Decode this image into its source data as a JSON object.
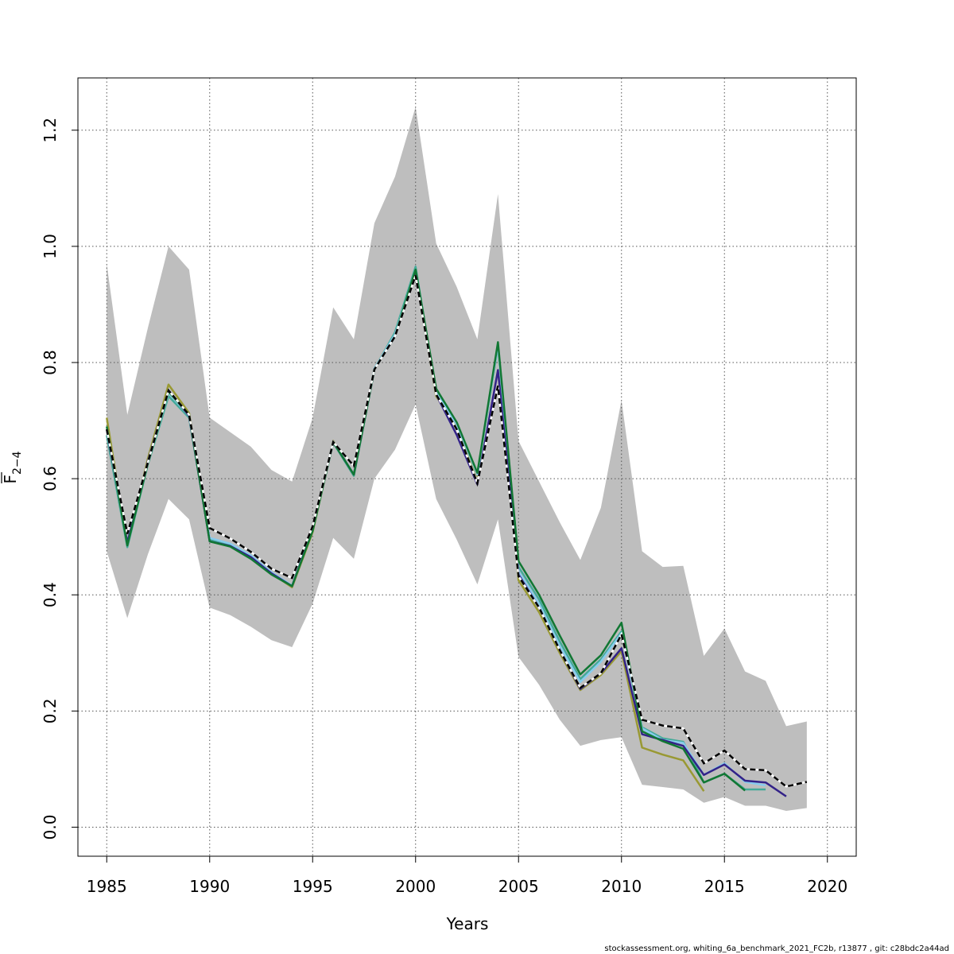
{
  "chart_data": {
    "type": "line",
    "title": "",
    "xlabel": "Years",
    "ylabel": "F̄ 2−4",
    "xlim": [
      1983.6,
      2021.4
    ],
    "ylim": [
      -0.05,
      1.29
    ],
    "x_ticks": [
      1985,
      1990,
      1995,
      2000,
      2005,
      2010,
      2015,
      2020
    ],
    "y_ticks": [
      0.0,
      0.2,
      0.4,
      0.6,
      0.8,
      1.0,
      1.2
    ],
    "y_tick_labels": [
      "0.0",
      "0.2",
      "0.4",
      "0.6",
      "0.8",
      "1.0",
      "1.2"
    ],
    "grid": true,
    "confidence_band": {
      "color": "#bebebe",
      "x": [
        1985,
        1986,
        1987,
        1988,
        1989,
        1990,
        1991,
        1992,
        1993,
        1994,
        1995,
        1996,
        1997,
        1998,
        1999,
        2000,
        2001,
        2002,
        2003,
        2004,
        2005,
        2006,
        2007,
        2008,
        2009,
        2010,
        2011,
        2012,
        2013,
        2014,
        2015,
        2016,
        2017,
        2018,
        2019
      ],
      "upper": [
        0.97,
        0.71,
        0.86,
        1.0,
        0.96,
        0.705,
        0.68,
        0.655,
        0.615,
        0.595,
        0.705,
        0.895,
        0.84,
        1.04,
        1.12,
        1.24,
        1.005,
        0.93,
        0.84,
        1.09,
        0.665,
        0.595,
        0.525,
        0.46,
        0.55,
        0.735,
        0.475,
        0.448,
        0.45,
        0.295,
        0.342,
        0.268,
        0.252,
        0.174,
        0.182
      ],
      "lower": [
        0.475,
        0.36,
        0.47,
        0.565,
        0.53,
        0.378,
        0.365,
        0.345,
        0.322,
        0.31,
        0.385,
        0.498,
        0.462,
        0.6,
        0.65,
        0.728,
        0.565,
        0.495,
        0.418,
        0.53,
        0.293,
        0.245,
        0.185,
        0.14,
        0.15,
        0.155,
        0.073,
        0.069,
        0.065,
        0.042,
        0.052,
        0.037,
        0.037,
        0.028,
        0.033
      ]
    },
    "series": [
      {
        "color": "#999933",
        "x": [
          1985,
          1986,
          1987,
          1988,
          1989,
          1990,
          1991,
          1992,
          1993,
          1994,
          1995,
          1996,
          1997,
          1998,
          1999,
          2000,
          2001,
          2002,
          2003,
          2004,
          2005,
          2006,
          2007,
          2008,
          2009,
          2010,
          2011,
          2012,
          2013,
          2014
        ],
        "values": [
          0.705,
          0.485,
          0.635,
          0.762,
          0.713,
          0.495,
          0.485,
          0.465,
          0.437,
          0.413,
          0.508,
          0.665,
          0.605,
          0.79,
          0.85,
          0.955,
          0.742,
          0.69,
          0.605,
          0.83,
          0.425,
          0.37,
          0.3,
          0.236,
          0.262,
          0.303,
          0.137,
          0.125,
          0.115,
          0.062
        ]
      },
      {
        "color": "#44AA99",
        "x": [
          1985,
          1986,
          1987,
          1988,
          1989,
          1990,
          1991,
          1992,
          1993,
          1994,
          1995,
          1996,
          1997,
          1998,
          1999,
          2000,
          2001,
          2002,
          2003,
          2004,
          2005,
          2006,
          2007,
          2008,
          2009,
          2010,
          2011,
          2012,
          2013,
          2014,
          2015,
          2016,
          2017
        ],
        "values": [
          0.675,
          0.482,
          0.625,
          0.742,
          0.705,
          0.495,
          0.485,
          0.467,
          0.438,
          0.415,
          0.513,
          0.662,
          0.605,
          0.788,
          0.852,
          0.965,
          0.748,
          0.694,
          0.608,
          0.828,
          0.448,
          0.392,
          0.32,
          0.255,
          0.289,
          0.337,
          0.172,
          0.153,
          0.147,
          0.077,
          0.092,
          0.065,
          0.065
        ]
      },
      {
        "color": "#88CCEE",
        "x": [
          1985,
          1986,
          1987,
          1988,
          1989,
          1990,
          1991,
          1992,
          1993,
          1994,
          1995,
          1996,
          1997,
          1998,
          1999,
          2000,
          2001,
          2002,
          2003,
          2004,
          2005,
          2006,
          2007,
          2008,
          2009,
          2010,
          2011,
          2012,
          2013,
          2014,
          2015,
          2016,
          2017
        ],
        "values": [
          0.685,
          0.488,
          0.628,
          0.748,
          0.708,
          0.498,
          0.488,
          0.468,
          0.439,
          0.416,
          0.513,
          0.664,
          0.607,
          0.79,
          0.848,
          0.958,
          0.747,
          0.693,
          0.607,
          0.83,
          0.44,
          0.384,
          0.312,
          0.25,
          0.285,
          0.334,
          0.17,
          0.15,
          0.145,
          0.09,
          0.11,
          0.078,
          0.072
        ]
      },
      {
        "color": "#332288",
        "x": [
          1985,
          1986,
          1987,
          1988,
          1989,
          1990,
          1991,
          1992,
          1993,
          1994,
          1995,
          1996,
          1997,
          1998,
          1999,
          2000,
          2001,
          2002,
          2003,
          2004,
          2005,
          2006,
          2007,
          2008,
          2009,
          2010,
          2011,
          2012,
          2013,
          2014,
          2015,
          2016,
          2017,
          2018
        ],
        "values": [
          0.685,
          0.49,
          0.63,
          0.752,
          0.708,
          0.492,
          0.484,
          0.465,
          0.437,
          0.415,
          0.512,
          0.663,
          0.607,
          0.788,
          0.845,
          0.955,
          0.745,
          0.675,
          0.59,
          0.787,
          0.435,
          0.378,
          0.305,
          0.238,
          0.265,
          0.308,
          0.16,
          0.15,
          0.14,
          0.09,
          0.108,
          0.08,
          0.077,
          0.053
        ]
      },
      {
        "color": "#117733",
        "x": [
          1985,
          1986,
          1987,
          1988,
          1989,
          1990,
          1991,
          1992,
          1993,
          1994,
          1995,
          1996,
          1997,
          1998,
          1999,
          2000,
          2001,
          2002,
          2003,
          2004,
          2005,
          2006,
          2007,
          2008,
          2009,
          2010,
          2011,
          2012,
          2013,
          2014,
          2015,
          2016
        ],
        "values": [
          0.69,
          0.485,
          0.627,
          0.75,
          0.71,
          0.492,
          0.483,
          0.462,
          0.435,
          0.415,
          0.51,
          0.663,
          0.607,
          0.788,
          0.845,
          0.96,
          0.755,
          0.697,
          0.61,
          0.835,
          0.458,
          0.4,
          0.33,
          0.263,
          0.296,
          0.352,
          0.165,
          0.148,
          0.135,
          0.077,
          0.092,
          0.063
        ]
      },
      {
        "color": "#000000",
        "dashed": true,
        "x": [
          1985,
          1986,
          1987,
          1988,
          1989,
          1990,
          1991,
          1992,
          1993,
          1994,
          1995,
          1996,
          1997,
          1998,
          1999,
          2000,
          2001,
          2002,
          2003,
          2004,
          2005,
          2006,
          2007,
          2008,
          2009,
          2010,
          2011,
          2012,
          2013,
          2014,
          2015,
          2016,
          2017,
          2018,
          2019
        ],
        "values": [
          0.685,
          0.505,
          0.628,
          0.752,
          0.71,
          0.515,
          0.497,
          0.474,
          0.445,
          0.429,
          0.518,
          0.663,
          0.622,
          0.788,
          0.845,
          0.95,
          0.745,
          0.685,
          0.592,
          0.76,
          0.432,
          0.378,
          0.305,
          0.24,
          0.265,
          0.332,
          0.185,
          0.175,
          0.17,
          0.11,
          0.132,
          0.1,
          0.098,
          0.07,
          0.078
        ]
      }
    ]
  },
  "footer": "stockassessment.org, whiting_6a_benchmark_2021_FC2b, r13877 , git: c28bdc2a44ad"
}
